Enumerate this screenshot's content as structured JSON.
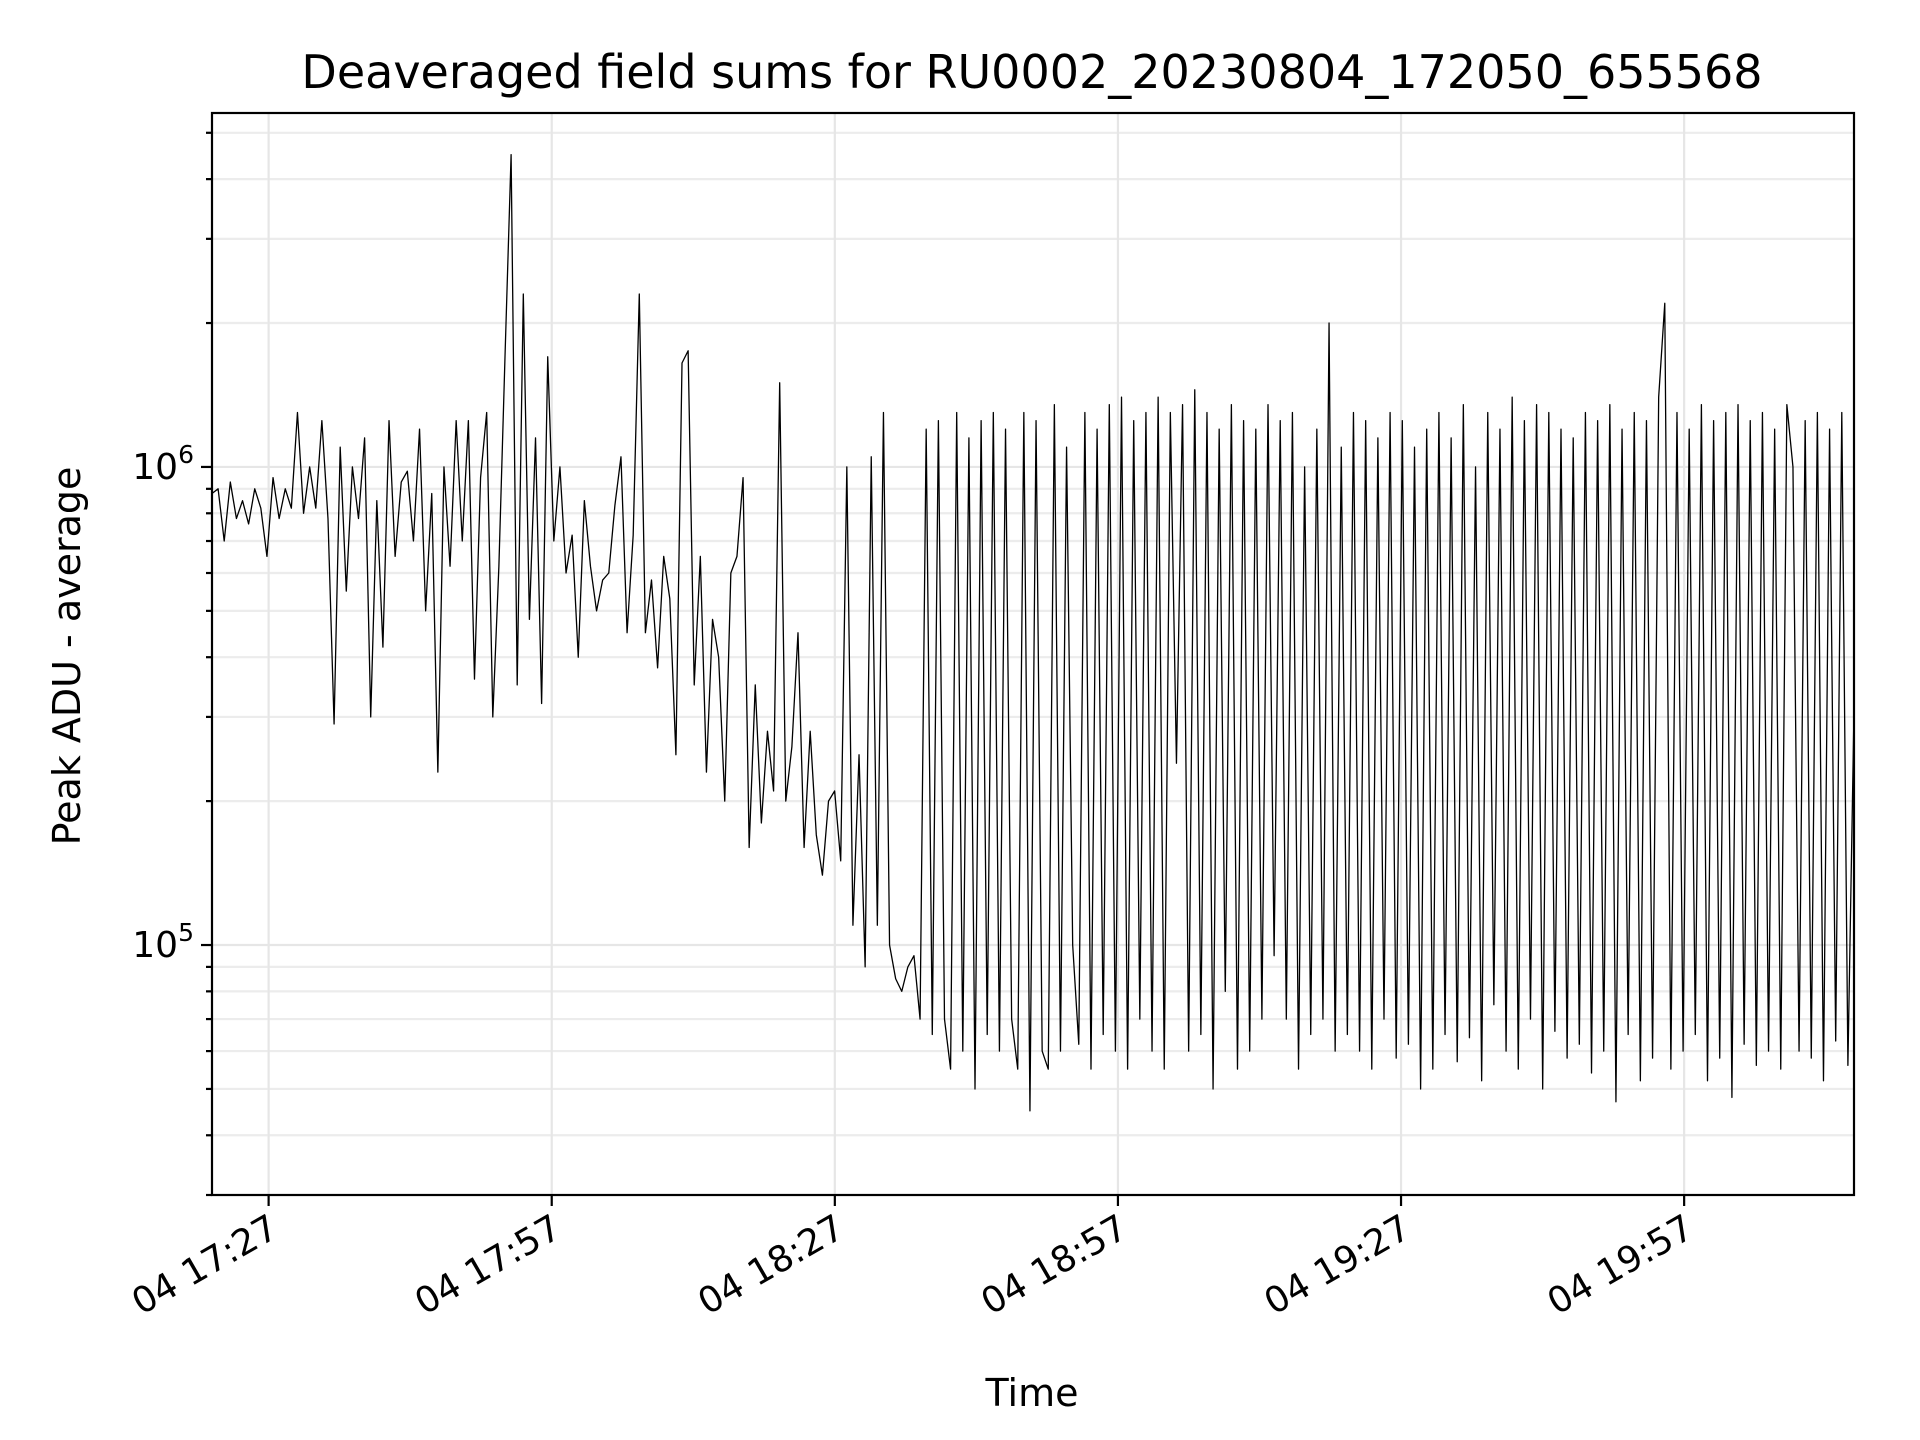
{
  "chart_data": {
    "type": "line",
    "title": "Deaveraged field sums for RU0002_20230804_172050_655568",
    "xlabel": "Time",
    "ylabel": "Peak ADU - average",
    "yscale": "log",
    "grid": true,
    "legend": "none",
    "x_ticks": [
      "04 17:27",
      "04 17:57",
      "04 18:27",
      "04 18:57",
      "04 19:27",
      "04 19:57"
    ],
    "y_ticks": [
      {
        "base": "10",
        "exp": "5",
        "value": 100000
      },
      {
        "base": "10",
        "exp": "6",
        "value": 1000000
      }
    ],
    "xlim": [
      "2023-08-04 17:21",
      "2023-08-04 20:15"
    ],
    "ylim": [
      30000,
      5500000
    ],
    "series": [
      {
        "color": "#000000",
        "x_start": "2023-08-04 17:21",
        "x_end": "2023-08-04 20:15",
        "values": [
          880000,
          900000,
          700000,
          930000,
          780000,
          850000,
          760000,
          900000,
          820000,
          650000,
          950000,
          780000,
          900000,
          820000,
          1300000,
          800000,
          1000000,
          820000,
          1250000,
          780000,
          290000,
          1100000,
          550000,
          1000000,
          780000,
          1150000,
          300000,
          850000,
          420000,
          1250000,
          650000,
          930000,
          980000,
          700000,
          1200000,
          500000,
          880000,
          230000,
          1000000,
          620000,
          1250000,
          700000,
          1250000,
          360000,
          950000,
          1300000,
          300000,
          620000,
          1700000,
          4500000,
          350000,
          2300000,
          480000,
          1150000,
          320000,
          1700000,
          700000,
          1000000,
          600000,
          720000,
          400000,
          850000,
          620000,
          500000,
          580000,
          600000,
          830000,
          1050000,
          450000,
          720000,
          2300000,
          450000,
          580000,
          380000,
          650000,
          530000,
          250000,
          1650000,
          1750000,
          350000,
          650000,
          230000,
          480000,
          400000,
          200000,
          600000,
          650000,
          950000,
          160000,
          350000,
          180000,
          280000,
          210000,
          1500000,
          200000,
          260000,
          450000,
          160000,
          280000,
          170000,
          140000,
          200000,
          210000,
          150000,
          1000000,
          110000,
          250000,
          90000,
          1050000,
          110000,
          1300000,
          100000,
          85000,
          80000,
          90000,
          95000,
          70000,
          1200000,
          65000,
          1250000,
          70000,
          55000,
          1300000,
          60000,
          1150000,
          50000,
          1250000,
          65000,
          1300000,
          60000,
          1200000,
          70000,
          55000,
          1300000,
          45000,
          1250000,
          60000,
          55000,
          1350000,
          60000,
          1100000,
          100000,
          62000,
          1300000,
          55000,
          1200000,
          65000,
          1350000,
          60000,
          1400000,
          55000,
          1250000,
          70000,
          1300000,
          60000,
          1400000,
          55000,
          1300000,
          240000,
          1350000,
          60000,
          1450000,
          65000,
          1300000,
          50000,
          1200000,
          80000,
          1350000,
          55000,
          1250000,
          60000,
          1200000,
          70000,
          1350000,
          95000,
          1250000,
          70000,
          1300000,
          55000,
          1000000,
          65000,
          1200000,
          70000,
          2000000,
          60000,
          1100000,
          65000,
          1300000,
          60000,
          1250000,
          55000,
          1150000,
          70000,
          1300000,
          58000,
          1250000,
          62000,
          1100000,
          50000,
          1200000,
          55000,
          1300000,
          65000,
          1150000,
          57000,
          1350000,
          64000,
          1000000,
          52000,
          1300000,
          75000,
          1200000,
          60000,
          1400000,
          55000,
          1250000,
          70000,
          1350000,
          50000,
          1300000,
          66000,
          1200000,
          58000,
          1150000,
          62000,
          1300000,
          54000,
          1250000,
          60000,
          1350000,
          47000,
          1200000,
          65000,
          1300000,
          52000,
          1250000,
          58000,
          1400000,
          2200000,
          55000,
          1300000,
          60000,
          1200000,
          65000,
          1350000,
          52000,
          1250000,
          58000,
          1300000,
          48000,
          1350000,
          62000,
          1250000,
          56000,
          1300000,
          60000,
          1200000,
          55000,
          1350000,
          1000000,
          60000,
          1250000,
          58000,
          1300000,
          52000,
          1200000,
          63000,
          1300000,
          56000,
          310000
        ]
      }
    ]
  }
}
